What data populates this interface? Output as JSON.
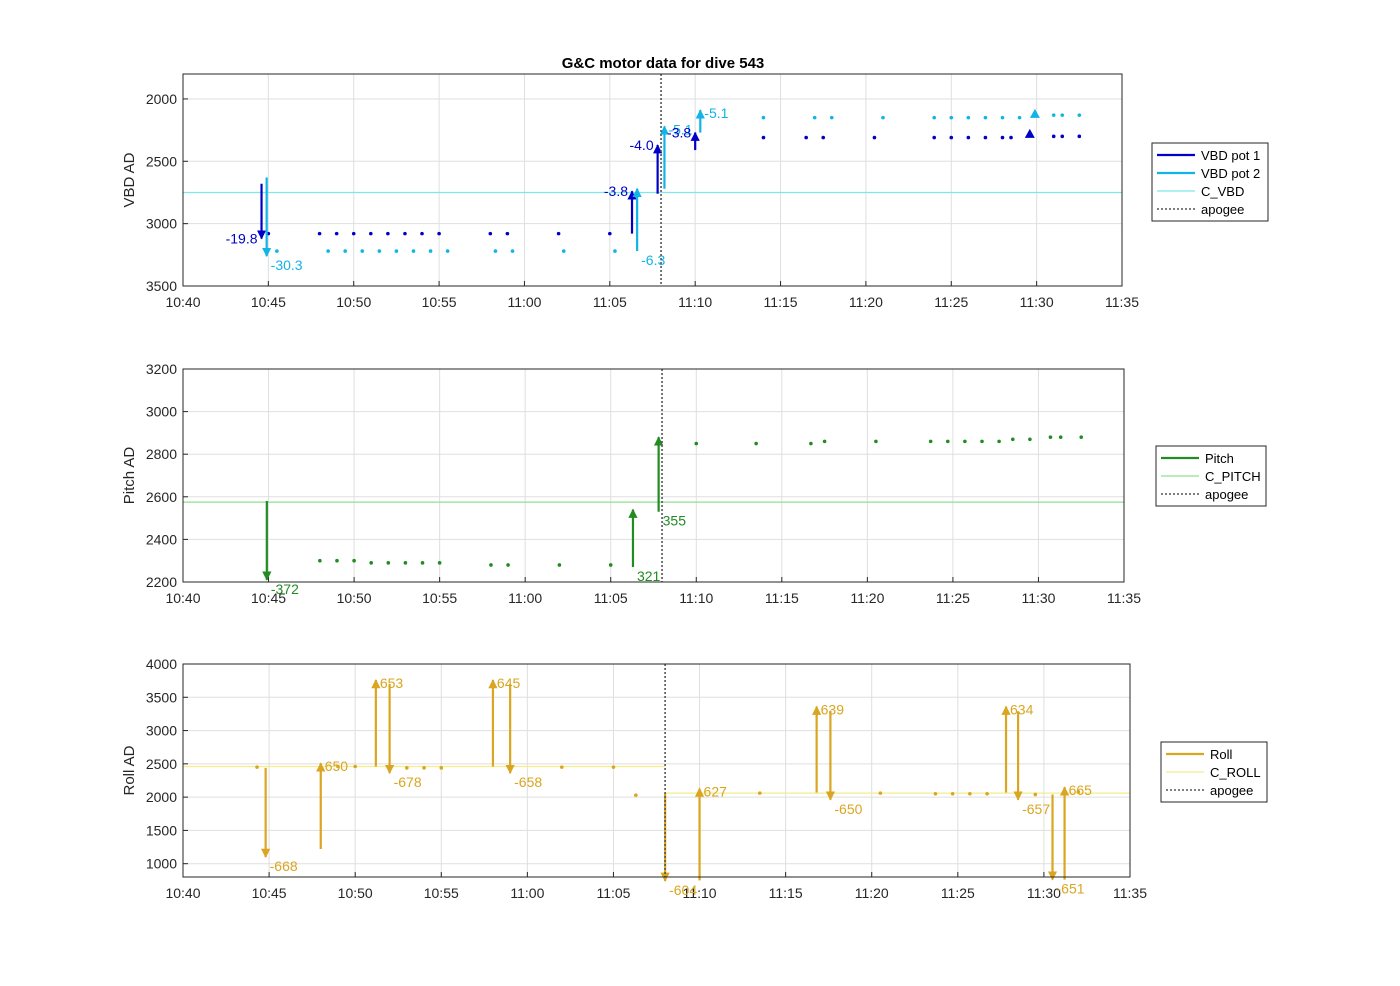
{
  "figure_title": "G&C motor data for dive 543",
  "colors": {
    "vbd_pot1": "#0000c8",
    "vbd_pot2": "#10b4e6",
    "c_vbd": "#7fe6ec",
    "pitch": "#228b22",
    "c_pitch": "#8ee08e",
    "roll": "#daa520",
    "c_roll": "#f3ee8a",
    "apogee": "#555555"
  },
  "chart_data": [
    {
      "type": "scatter",
      "title": "G&C motor data for dive 543",
      "xlabel": "",
      "ylabel": "VBD AD",
      "x_ticks": [
        "10:40",
        "10:45",
        "10:50",
        "10:55",
        "11:00",
        "11:05",
        "11:10",
        "11:15",
        "11:20",
        "11:25",
        "11:30",
        "11:35"
      ],
      "xlim": [
        "10:40",
        "11:35"
      ],
      "ylim": [
        1800,
        3500
      ],
      "y_reversed": true,
      "y_ticks": [
        2000,
        2500,
        3000,
        3500
      ],
      "grid": true,
      "apogee": "11:08",
      "legend_position": "right",
      "legend": [
        {
          "label": "VBD pot 1",
          "style": "thick",
          "color_key": "vbd_pot1"
        },
        {
          "label": "VBD pot 2",
          "style": "thick",
          "color_key": "vbd_pot2"
        },
        {
          "label": "C_VBD",
          "style": "thin",
          "color_key": "c_vbd"
        },
        {
          "label": "apogee",
          "style": "dotted",
          "color_key": "apogee"
        }
      ],
      "reference_lines": [
        {
          "name": "C_VBD",
          "y": 2750,
          "from": "10:40",
          "to": "11:35",
          "color_key": "c_vbd"
        }
      ],
      "series": [
        {
          "name": "VBD pot 1",
          "color_key": "vbd_pot1",
          "points": [
            [
              "10:45",
              3080
            ],
            [
              "10:48",
              3080
            ],
            [
              "10:49",
              3080
            ],
            [
              "10:50",
              3080
            ],
            [
              "10:51",
              3080
            ],
            [
              "10:52",
              3080
            ],
            [
              "10:53",
              3080
            ],
            [
              "10:54",
              3080
            ],
            [
              "10:55",
              3080
            ],
            [
              "10:58",
              3080
            ],
            [
              "10:59",
              3080
            ],
            [
              "11:02",
              3080
            ],
            [
              "11:05",
              3080
            ],
            [
              "11:14",
              2310
            ],
            [
              "11:16.5",
              2310
            ],
            [
              "11:17.5",
              2310
            ],
            [
              "11:20.5",
              2310
            ],
            [
              "11:24",
              2310
            ],
            [
              "11:25",
              2310
            ],
            [
              "11:26",
              2310
            ],
            [
              "11:27",
              2310
            ],
            [
              "11:28",
              2310
            ],
            [
              "11:28.5",
              2310
            ],
            [
              "11:31",
              2300
            ],
            [
              "11:31.5",
              2300
            ],
            [
              "11:32.5",
              2300
            ]
          ]
        },
        {
          "name": "VBD pot 2",
          "color_key": "vbd_pot2",
          "points": [
            [
              "10:45.5",
              3220
            ],
            [
              "10:48.5",
              3220
            ],
            [
              "10:49.5",
              3220
            ],
            [
              "10:50.5",
              3220
            ],
            [
              "10:51.5",
              3220
            ],
            [
              "10:52.5",
              3220
            ],
            [
              "10:53.5",
              3220
            ],
            [
              "10:54.5",
              3220
            ],
            [
              "10:55.5",
              3220
            ],
            [
              "10:58.3",
              3220
            ],
            [
              "10:59.3",
              3220
            ],
            [
              "11:02.3",
              3220
            ],
            [
              "11:05.3",
              3220
            ],
            [
              "11:14",
              2150
            ],
            [
              "11:17",
              2150
            ],
            [
              "11:18",
              2150
            ],
            [
              "11:21",
              2150
            ],
            [
              "11:24",
              2150
            ],
            [
              "11:25",
              2150
            ],
            [
              "11:26",
              2150
            ],
            [
              "11:27",
              2150
            ],
            [
              "11:28",
              2150
            ],
            [
              "11:29",
              2150
            ],
            [
              "11:31",
              2130
            ],
            [
              "11:31.5",
              2130
            ],
            [
              "11:32.5",
              2130
            ]
          ]
        }
      ],
      "arrows": [
        {
          "series": "VBD pot 1",
          "x": "10:44.6",
          "from": 2680,
          "to": 3120,
          "label": "-19.8",
          "label_side": "left"
        },
        {
          "series": "VBD pot 2",
          "x": "10:44.9",
          "from": 2630,
          "to": 3260,
          "label": "-30.3",
          "label_side": "below-right"
        },
        {
          "series": "VBD pot 1",
          "x": "11:06.3",
          "from": 3080,
          "to": 2740,
          "label": "-3.8",
          "label_side": "left"
        },
        {
          "series": "VBD pot 2",
          "x": "11:06.6",
          "from": 3220,
          "to": 2720,
          "label": "-6.3",
          "label_side": "below-right"
        },
        {
          "series": "VBD pot 1",
          "x": "11:07.8",
          "from": 2760,
          "to": 2370,
          "label": "-4.0",
          "label_side": "left"
        },
        {
          "series": "VBD pot 2",
          "x": "11:08.2",
          "from": 2720,
          "to": 2220,
          "label": "-5.1",
          "label_side": "right"
        },
        {
          "series": "VBD pot 1",
          "x": "11:10",
          "from": 2410,
          "to": 2270,
          "label": "-3.8",
          "label_side": "left"
        },
        {
          "series": "VBD pot 2",
          "x": "11:10.3",
          "from": 2270,
          "to": 2090,
          "label": "-5.1",
          "label_side": "right"
        }
      ],
      "markers": [
        {
          "series": "VBD pot 1",
          "x": "11:29.6",
          "y": 2280
        },
        {
          "series": "VBD pot 2",
          "x": "11:29.9",
          "y": 2120
        }
      ]
    },
    {
      "type": "scatter",
      "title": "",
      "xlabel": "",
      "ylabel": "Pitch AD",
      "x_ticks": [
        "10:40",
        "10:45",
        "10:50",
        "10:55",
        "11:00",
        "11:05",
        "11:10",
        "11:15",
        "11:20",
        "11:25",
        "11:30",
        "11:35"
      ],
      "xlim": [
        "10:40",
        "11:35"
      ],
      "ylim": [
        2200,
        3200
      ],
      "y_ticks": [
        2200,
        2400,
        2600,
        2800,
        3000,
        3200
      ],
      "grid": true,
      "apogee": "11:08",
      "legend_position": "right",
      "legend": [
        {
          "label": "Pitch",
          "style": "thick",
          "color_key": "pitch"
        },
        {
          "label": "C_PITCH",
          "style": "thin",
          "color_key": "c_pitch"
        },
        {
          "label": "apogee",
          "style": "dotted",
          "color_key": "apogee"
        }
      ],
      "reference_lines": [
        {
          "name": "C_PITCH",
          "y": 2575,
          "from": "10:40",
          "to": "11:35",
          "color_key": "c_pitch"
        }
      ],
      "series": [
        {
          "name": "Pitch",
          "color_key": "pitch",
          "points": [
            [
              "10:48",
              2300
            ],
            [
              "10:49",
              2300
            ],
            [
              "10:50",
              2300
            ],
            [
              "10:51",
              2290
            ],
            [
              "10:52",
              2290
            ],
            [
              "10:53",
              2290
            ],
            [
              "10:54",
              2290
            ],
            [
              "10:55",
              2290
            ],
            [
              "10:58",
              2280
            ],
            [
              "10:59",
              2280
            ],
            [
              "11:02",
              2280
            ],
            [
              "11:05",
              2280
            ],
            [
              "11:10",
              2850
            ],
            [
              "11:13.5",
              2850
            ],
            [
              "11:16.7",
              2850
            ],
            [
              "11:17.5",
              2860
            ],
            [
              "11:20.5",
              2860
            ],
            [
              "11:23.7",
              2860
            ],
            [
              "11:24.7",
              2860
            ],
            [
              "11:25.7",
              2860
            ],
            [
              "11:26.7",
              2860
            ],
            [
              "11:27.7",
              2860
            ],
            [
              "11:28.5",
              2870
            ],
            [
              "11:29.5",
              2870
            ],
            [
              "11:30.7",
              2880
            ],
            [
              "11:31.3",
              2880
            ],
            [
              "11:32.5",
              2880
            ]
          ]
        }
      ],
      "arrows": [
        {
          "series": "Pitch",
          "x": "10:44.9",
          "from": 2580,
          "to": 2210,
          "label": "-372",
          "label_side": "below-right"
        },
        {
          "series": "Pitch",
          "x": "11:06.3",
          "from": 2270,
          "to": 2540,
          "label": "321",
          "label_side": "below-right"
        },
        {
          "series": "Pitch",
          "x": "11:07.8",
          "from": 2530,
          "to": 2880,
          "label": "355",
          "label_side": "below-right"
        }
      ],
      "markers": []
    },
    {
      "type": "scatter",
      "title": "",
      "xlabel": "",
      "ylabel": "Roll AD",
      "x_ticks": [
        "10:40",
        "10:45",
        "10:50",
        "10:55",
        "11:00",
        "11:05",
        "11:10",
        "11:15",
        "11:20",
        "11:25",
        "11:30",
        "11:35"
      ],
      "xlim": [
        "10:40",
        "11:35"
      ],
      "ylim": [
        800,
        4000
      ],
      "y_ticks": [
        1000,
        1500,
        2000,
        2500,
        3000,
        3500,
        4000
      ],
      "grid": true,
      "apogee": "11:08",
      "legend_position": "right",
      "legend": [
        {
          "label": "Roll",
          "style": "thick",
          "color_key": "roll"
        },
        {
          "label": "C_ROLL",
          "style": "thin",
          "color_key": "c_roll"
        },
        {
          "label": "apogee",
          "style": "dotted",
          "color_key": "apogee"
        }
      ],
      "reference_lines": [
        {
          "name": "C_ROLL",
          "y": 2460,
          "from": "10:40",
          "to": "11:08",
          "color_key": "c_roll"
        },
        {
          "name": "C_ROLL",
          "y": 2060,
          "from": "11:08",
          "to": "11:35",
          "color_key": "c_roll"
        }
      ],
      "series": [
        {
          "name": "Roll",
          "color_key": "roll",
          "points": [
            [
              "10:44.3",
              2450
            ],
            [
              "10:49",
              2460
            ],
            [
              "10:50",
              2460
            ],
            [
              "10:53",
              2440
            ],
            [
              "10:54",
              2440
            ],
            [
              "10:55",
              2440
            ],
            [
              "11:02",
              2450
            ],
            [
              "11:05",
              2450
            ],
            [
              "11:06.3",
              2030
            ],
            [
              "11:13.5",
              2060
            ],
            [
              "11:20.5",
              2060
            ],
            [
              "11:23.7",
              2050
            ],
            [
              "11:24.7",
              2050
            ],
            [
              "11:25.7",
              2050
            ],
            [
              "11:26.7",
              2050
            ],
            [
              "11:29.5",
              2040
            ],
            [
              "11:32",
              2080
            ]
          ]
        }
      ],
      "arrows": [
        {
          "series": "Roll",
          "x": "10:44.8",
          "from": 2440,
          "to": 1100,
          "label": "-668",
          "label_side": "below-right"
        },
        {
          "series": "Roll",
          "x": "10:48",
          "from": 1220,
          "to": 2510,
          "label": "650",
          "label_side": "right"
        },
        {
          "series": "Roll",
          "x": "10:51.2",
          "from": 2460,
          "to": 3760,
          "label": "653",
          "label_side": "right"
        },
        {
          "series": "Roll",
          "x": "10:52",
          "from": 3700,
          "to": 2360,
          "label": "-678",
          "label_side": "below-right"
        },
        {
          "series": "Roll",
          "x": "10:58",
          "from": 2460,
          "to": 3760,
          "label": "645",
          "label_side": "right"
        },
        {
          "series": "Roll",
          "x": "10:59",
          "from": 3700,
          "to": 2360,
          "label": "-658",
          "label_side": "below-right"
        },
        {
          "series": "Roll",
          "x": "11:08",
          "from": 2050,
          "to": 740,
          "label": "-604",
          "label_side": "below-right"
        },
        {
          "series": "Roll",
          "x": "11:10",
          "from": 750,
          "to": 2130,
          "label": "627",
          "label_side": "right"
        },
        {
          "series": "Roll",
          "x": "11:16.8",
          "from": 2070,
          "to": 3360,
          "label": "639",
          "label_side": "right"
        },
        {
          "series": "Roll",
          "x": "11:17.6",
          "from": 3300,
          "to": 1960,
          "label": "-650",
          "label_side": "below-right"
        },
        {
          "series": "Roll",
          "x": "11:27.8",
          "from": 2070,
          "to": 3360,
          "label": "634",
          "label_side": "right"
        },
        {
          "series": "Roll",
          "x": "11:28.5",
          "from": 3290,
          "to": 1960,
          "label": "-657",
          "label_side": "below-right"
        },
        {
          "series": "Roll",
          "x": "11:30.5",
          "from": 2040,
          "to": 760,
          "label": "-651",
          "label_side": "below-right"
        },
        {
          "series": "Roll",
          "x": "11:31.2",
          "from": 760,
          "to": 2150,
          "label": "665",
          "label_side": "right"
        }
      ],
      "markers": []
    }
  ]
}
